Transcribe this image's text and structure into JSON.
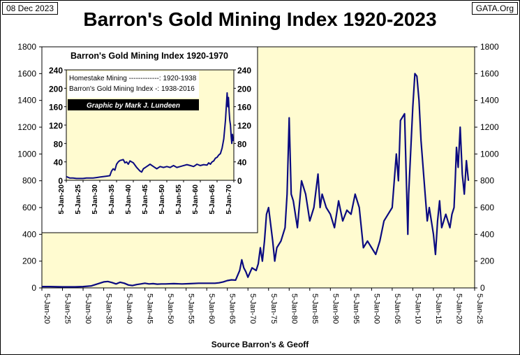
{
  "header": {
    "date": "08 Dec 2023",
    "source": "GATA.Org"
  },
  "chart_data": [
    {
      "type": "line",
      "title": "Barron's Gold Mining Index 1920-2023",
      "xlabel": "Source Barron's & Geoff",
      "ylabel": "",
      "xlim": [
        1920,
        2025
      ],
      "ylim": [
        0,
        1800
      ],
      "yticks": [
        0,
        200,
        400,
        600,
        800,
        1000,
        1200,
        1400,
        1600,
        1800
      ],
      "xtick_labels": [
        "5-Jan-20",
        "5-Jan-25",
        "5-Jan-30",
        "5-Jan-35",
        "5-Jan-40",
        "5-Jan-45",
        "5-Jan-50",
        "5-Jan-55",
        "5-Jan-60",
        "5-Jan-65",
        "5-Jan-70",
        "5-Jan-75",
        "5-Jan-80",
        "5-Jan-85",
        "5-Jan-90",
        "5-Jan-95",
        "5-Jan-00",
        "5-Jan-05",
        "5-Jan-10",
        "5-Jan-15",
        "5-Jan-20",
        "5-Jan-25"
      ],
      "grid": false,
      "series": [
        {
          "name": "Barron's Gold Mining Index",
          "x": [
            1920,
            1922,
            1925,
            1928,
            1930,
            1932,
            1933,
            1934,
            1935,
            1936,
            1937,
            1938,
            1939,
            1940,
            1941,
            1942,
            1943,
            1944,
            1945,
            1946,
            1947,
            1948,
            1949,
            1950,
            1952,
            1954,
            1956,
            1958,
            1960,
            1962,
            1963,
            1964,
            1965,
            1966,
            1967,
            1968,
            1968.5,
            1969,
            1969.5,
            1970,
            1971,
            1972,
            1972.5,
            1973,
            1973.5,
            1974,
            1974.5,
            1975,
            1976,
            1976.5,
            1977,
            1978,
            1979,
            1979.5,
            1980,
            1980.5,
            1981,
            1982,
            1983,
            1984,
            1985,
            1986,
            1987,
            1987.5,
            1988,
            1989,
            1990,
            1991,
            1992,
            1993,
            1994,
            1995,
            1996,
            1997,
            1998,
            1999,
            2000,
            2001,
            2002,
            2003,
            2004,
            2005,
            2006,
            2006.5,
            2007,
            2008,
            2008.8,
            2009,
            2010,
            2010.5,
            2011,
            2011.5,
            2012,
            2013,
            2013.5,
            2014,
            2015,
            2015.5,
            2016,
            2016.5,
            2017,
            2018,
            2019,
            2019.5,
            2020,
            2020.3,
            2020.6,
            2021,
            2021.5,
            2022,
            2022.5,
            2023,
            2023.5
          ],
          "values": [
            10,
            10,
            8,
            8,
            10,
            15,
            25,
            35,
            45,
            48,
            40,
            30,
            42,
            35,
            22,
            18,
            25,
            30,
            35,
            30,
            32,
            28,
            30,
            30,
            32,
            30,
            32,
            35,
            35,
            35,
            38,
            45,
            55,
            60,
            58,
            130,
            210,
            150,
            120,
            80,
            150,
            130,
            180,
            300,
            200,
            350,
            550,
            600,
            350,
            200,
            300,
            350,
            450,
            700,
            1270,
            700,
            650,
            450,
            800,
            700,
            500,
            600,
            850,
            600,
            700,
            600,
            550,
            450,
            650,
            500,
            580,
            550,
            700,
            600,
            300,
            350,
            300,
            250,
            350,
            500,
            550,
            600,
            1000,
            800,
            1250,
            1300,
            400,
            700,
            1350,
            1600,
            1580,
            1400,
            1100,
            700,
            500,
            600,
            400,
            250,
            500,
            650,
            450,
            550,
            450,
            550,
            600,
            800,
            1050,
            900,
            1200,
            850,
            700,
            950,
            800
          ]
        }
      ]
    },
    {
      "type": "line",
      "title": "Barron's Gold Mining Index 1920-1970",
      "xlim": [
        1920,
        1970
      ],
      "ylim": [
        0,
        240
      ],
      "yticks": [
        0,
        40,
        80,
        120,
        160,
        200,
        240
      ],
      "xtick_labels": [
        "5-Jan-20",
        "5-Jan-25",
        "5-Jan-30",
        "5-Jan-35",
        "5-Jan-40",
        "5-Jan-45",
        "5-Jan-50",
        "5-Jan-55",
        "5-Jan-60",
        "5-Jan-65",
        "5-Jan-70"
      ],
      "legend": [
        {
          "label": "Homestake Mining -------------: 1920-1938"
        },
        {
          "label": "Barron's Gold Mining Index -: 1938-2016"
        }
      ],
      "credit": "Graphic by Mark J. Lundeen",
      "series": [
        {
          "name": "Gold Mining Index 1920-1970",
          "x": [
            1920,
            1921,
            1922,
            1923,
            1924,
            1925,
            1926,
            1927,
            1928,
            1929,
            1930,
            1931,
            1932,
            1933,
            1933.5,
            1934,
            1934.5,
            1935,
            1935.5,
            1936,
            1937,
            1937.5,
            1938,
            1938.5,
            1939,
            1940,
            1941,
            1942,
            1942.5,
            1943,
            1944,
            1945,
            1946,
            1947,
            1948,
            1949,
            1950,
            1951,
            1952,
            1953,
            1954,
            1955,
            1956,
            1957,
            1958,
            1959,
            1960,
            1961,
            1962,
            1962.5,
            1963,
            1963.5,
            1964,
            1964.5,
            1965,
            1965.5,
            1966,
            1966.5,
            1967,
            1967.5,
            1968,
            1968.2,
            1968.4,
            1968.6,
            1968.8,
            1969,
            1969.2,
            1969.4,
            1969.6,
            1969.8
          ],
          "values": [
            8,
            5,
            5,
            4,
            4,
            4,
            5,
            5,
            5,
            6,
            7,
            8,
            9,
            10,
            20,
            25,
            22,
            35,
            40,
            43,
            45,
            38,
            40,
            35,
            42,
            38,
            28,
            20,
            18,
            25,
            30,
            35,
            30,
            25,
            30,
            28,
            30,
            28,
            32,
            28,
            30,
            32,
            34,
            32,
            30,
            35,
            32,
            34,
            33,
            38,
            35,
            40,
            42,
            48,
            50,
            55,
            58,
            70,
            90,
            130,
            190,
            160,
            180,
            150,
            130,
            120,
            95,
            80,
            100,
            85
          ]
        }
      ]
    }
  ]
}
